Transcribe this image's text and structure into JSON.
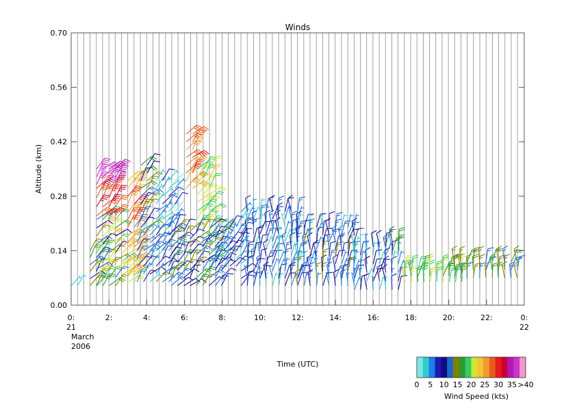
{
  "chart_data": {
    "type": "wind-barb-time-height",
    "title": "Winds",
    "xlabel": "Time (UTC)",
    "ylabel": "Altitude (km)",
    "xlim": [
      0,
      24
    ],
    "ylim": [
      0,
      0.7
    ],
    "y_ticks": [
      "0.00",
      "0.14",
      "0.28",
      "0.42",
      "0.56",
      "0.70"
    ],
    "x_ticks": [
      {
        "x": 0,
        "label": "0:"
      },
      {
        "x": 2,
        "label": "2:"
      },
      {
        "x": 4,
        "label": "4:"
      },
      {
        "x": 6,
        "label": "6:"
      },
      {
        "x": 8,
        "label": "8:"
      },
      {
        "x": 10,
        "label": "10:"
      },
      {
        "x": 12,
        "label": "12:"
      },
      {
        "x": 14,
        "label": "14:"
      },
      {
        "x": 16,
        "label": "16:"
      },
      {
        "x": 18,
        "label": "18:"
      },
      {
        "x": 20,
        "label": "20:"
      },
      {
        "x": 22,
        "label": "22:"
      },
      {
        "x": 24,
        "label": "0:"
      }
    ],
    "date_start": [
      "21",
      "March",
      "2006"
    ],
    "date_end": [
      "22"
    ],
    "profile_interval_hours": 0.333,
    "grid": "vertical lines at each profile time",
    "colorbar": {
      "label": "Wind Speed (kts)",
      "tick_labels": [
        "0",
        "5",
        "10",
        "15",
        "20",
        "25",
        "30",
        "35",
        ">40"
      ],
      "colors": [
        "#7fe6e6",
        "#33cccc",
        "#1a80e6",
        "#1a1ab3",
        "#0d0d80",
        "#1a66cc",
        "#808000",
        "#2e9a2e",
        "#33cc66",
        "#cce633",
        "#f2c233",
        "#f29933",
        "#e65c1a",
        "#e61a1a",
        "#cc0033",
        "#b31ab3",
        "#cc33cc",
        "#f299cc"
      ]
    },
    "series": [
      {
        "start": 0.0,
        "end": 0.4,
        "hmin": 0.05,
        "hmax": 0.05,
        "smin": 4,
        "smax": 6
      },
      {
        "start": 1.0,
        "end": 1.35,
        "hmin": 0.05,
        "hmax": 0.14,
        "smin": 8,
        "smax": 24
      },
      {
        "start": 1.35,
        "end": 2.4,
        "hmin": 0.05,
        "hmax": 0.22,
        "smin": 10,
        "smax": 30
      },
      {
        "start": 1.35,
        "end": 2.4,
        "hmin": 0.23,
        "hmax": 0.3,
        "smin": 30,
        "smax": 37
      },
      {
        "start": 1.35,
        "end": 2.4,
        "hmin": 0.31,
        "hmax": 0.35,
        "smin": 39,
        "smax": 44
      },
      {
        "start": 2.7,
        "end": 3.4,
        "hmin": 0.06,
        "hmax": 0.15,
        "smin": 20,
        "smax": 30
      },
      {
        "start": 3.0,
        "end": 3.5,
        "hmin": 0.16,
        "hmax": 0.32,
        "smin": 26,
        "smax": 34
      },
      {
        "start": 3.5,
        "end": 5.2,
        "hmin": 0.06,
        "hmax": 0.2,
        "smin": 2,
        "smax": 16
      },
      {
        "start": 3.7,
        "end": 4.2,
        "hmin": 0.2,
        "hmax": 0.36,
        "smin": 10,
        "smax": 20
      },
      {
        "start": 4.5,
        "end": 5.7,
        "hmin": 0.2,
        "hmax": 0.32,
        "smin": 2,
        "smax": 10
      },
      {
        "start": 5.3,
        "end": 8.2,
        "hmin": 0.05,
        "hmax": 0.19,
        "smin": 8,
        "smax": 20
      },
      {
        "start": 6.1,
        "end": 6.7,
        "hmin": 0.3,
        "hmax": 0.44,
        "smin": 27,
        "smax": 33
      },
      {
        "start": 6.7,
        "end": 7.4,
        "hmin": 0.2,
        "hmax": 0.35,
        "smin": 20,
        "smax": 26
      },
      {
        "start": 7.4,
        "end": 9.0,
        "hmin": 0.1,
        "hmax": 0.2,
        "smin": 3,
        "smax": 10
      },
      {
        "start": 9.0,
        "end": 12.0,
        "hmin": 0.05,
        "hmax": 0.24,
        "smin": 3,
        "smax": 15
      },
      {
        "start": 12.0,
        "end": 15.0,
        "hmin": 0.05,
        "hmax": 0.2,
        "smin": 4,
        "smax": 16
      },
      {
        "start": 15.0,
        "end": 17.6,
        "hmin": 0.04,
        "hmax": 0.15,
        "smin": 4,
        "smax": 12
      },
      {
        "start": 16.7,
        "end": 17.4,
        "hmin": 0.14,
        "hmax": 0.16,
        "smin": 13,
        "smax": 18
      },
      {
        "start": 17.7,
        "end": 21.0,
        "hmin": 0.06,
        "hmax": 0.09,
        "smin": 18,
        "smax": 25
      },
      {
        "start": 20.3,
        "end": 23.8,
        "hmin": 0.07,
        "hmax": 0.11,
        "smin": 12,
        "smax": 20
      }
    ]
  }
}
